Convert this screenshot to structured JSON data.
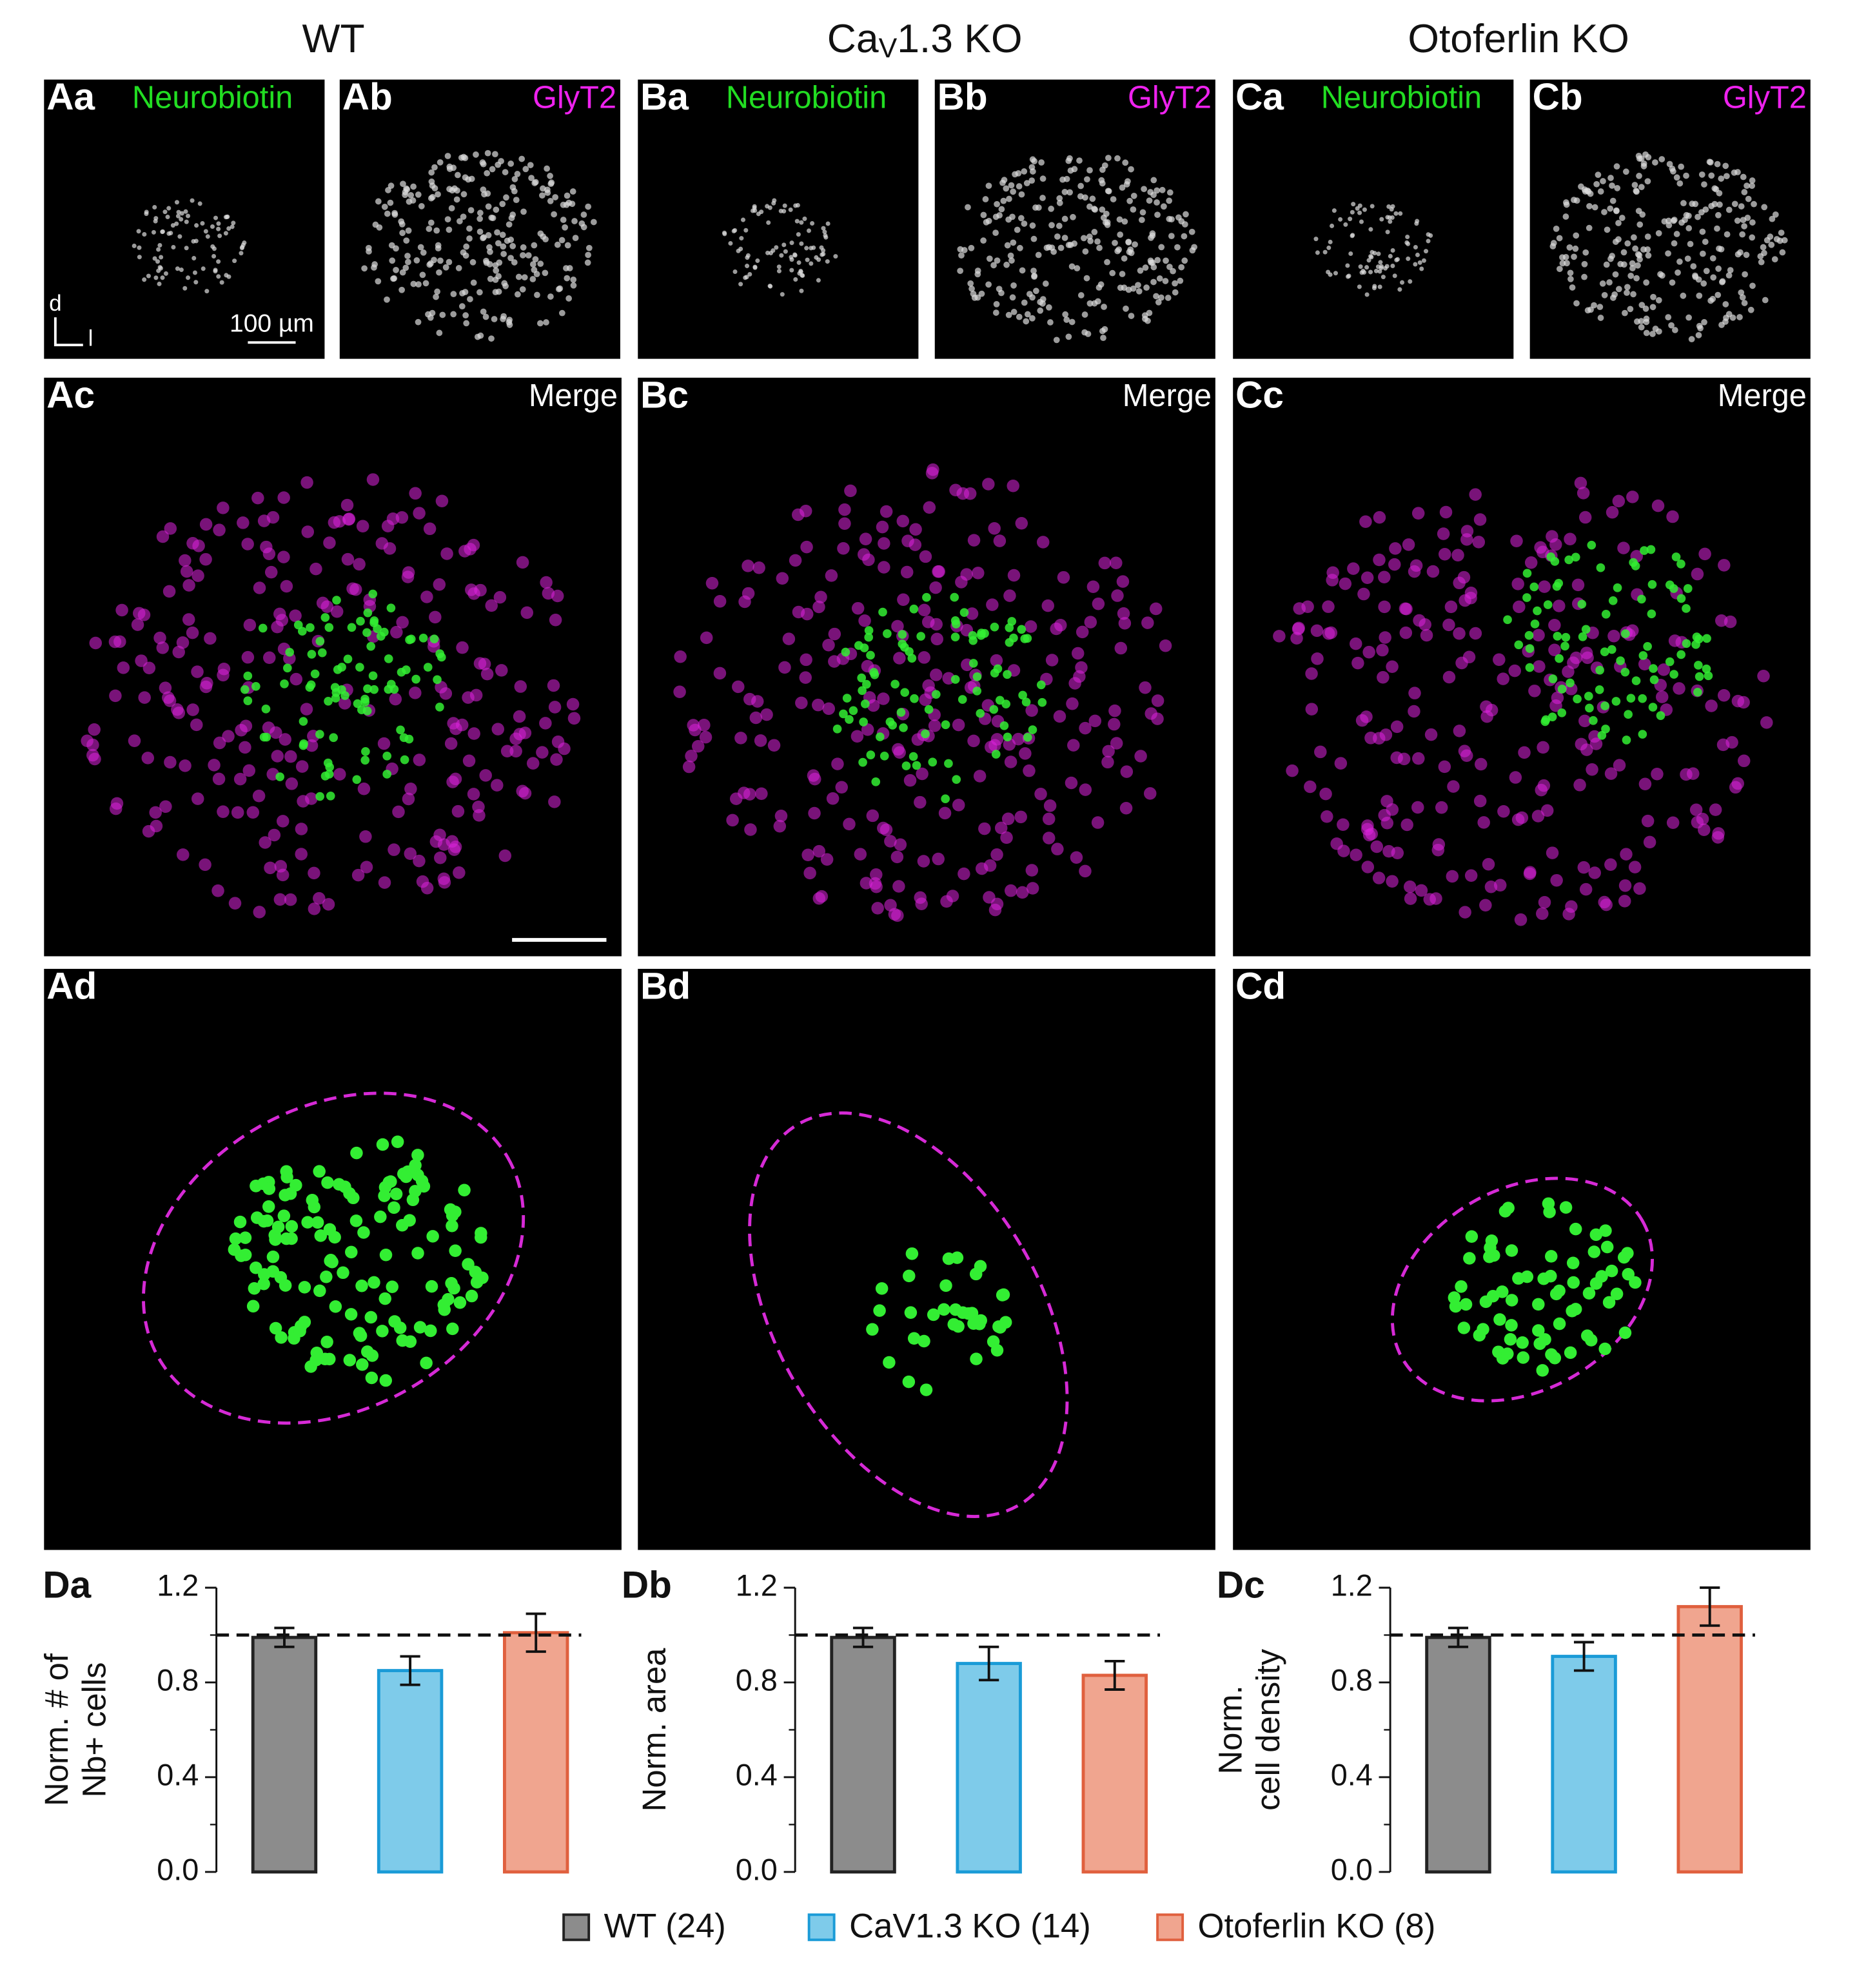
{
  "columns": [
    {
      "title": [
        "WT"
      ]
    },
    {
      "title": [
        "Ca",
        "V",
        "1.3 KO"
      ]
    },
    {
      "title": [
        "Otoferlin KO"
      ]
    }
  ],
  "panels": [
    {
      "label": "Aa",
      "tag": "Neurobiotin",
      "tag_color": "#22dd22"
    },
    {
      "label": "Ab",
      "tag": "GlyT2",
      "tag_color": "#ee22ee"
    },
    {
      "label": "Ba",
      "tag": "Neurobiotin",
      "tag_color": "#22dd22"
    },
    {
      "label": "Bb",
      "tag": "GlyT2",
      "tag_color": "#ee22ee"
    },
    {
      "label": "Ca",
      "tag": "Neurobiotin",
      "tag_color": "#22dd22"
    },
    {
      "label": "Cb",
      "tag": "GlyT2",
      "tag_color": "#ee22ee"
    },
    {
      "label": "Ac",
      "tag": "Merge",
      "tag_color": "#ffffff"
    },
    {
      "label": "Bc",
      "tag": "Merge",
      "tag_color": "#ffffff"
    },
    {
      "label": "Cc",
      "tag": "Merge",
      "tag_color": "#ffffff"
    },
    {
      "label": "Ad"
    },
    {
      "label": "Bd"
    },
    {
      "label": "Cd"
    }
  ],
  "scale_bar": "100 µm",
  "orientation": [
    "d",
    "l"
  ],
  "chart_data": [
    {
      "type": "bar",
      "title": "Da",
      "ylabel": [
        "Norm. # of",
        "Nb+ cells"
      ],
      "ylim": [
        0,
        1.2
      ],
      "yticks": [
        {
          "value": 0,
          "label": "0.0"
        },
        0.4,
        0.8,
        1.2
      ],
      "reference_line": 1,
      "series": [
        {
          "name": "WT (24)",
          "color": "#8c8c8c",
          "edgecolor": "#222222",
          "values": [
            0.99
          ],
          "errors": [
            0.04
          ]
        },
        {
          "name": "CaV1.3 KO (14)",
          "color": "#7ecbea",
          "edgecolor": "#1a9bd7",
          "values": [
            0.85
          ],
          "errors": [
            0.06
          ]
        },
        {
          "name": "Otoferlin KO (8)",
          "color": "#f0a58f",
          "edgecolor": "#e0603e",
          "values": [
            1.01
          ],
          "errors": [
            0.08
          ]
        }
      ]
    },
    {
      "type": "bar",
      "title": "Db",
      "ylabel": [
        "Norm. area"
      ],
      "ylim": [
        0,
        1.2
      ],
      "yticks": [
        {
          "value": 0,
          "label": "0.0"
        },
        0.4,
        0.8,
        1.2
      ],
      "reference_line": 1,
      "series": [
        {
          "name": "WT (24)",
          "color": "#8c8c8c",
          "edgecolor": "#222222",
          "values": [
            0.99
          ],
          "errors": [
            0.04
          ]
        },
        {
          "name": "CaV1.3 KO (14)",
          "color": "#7ecbea",
          "edgecolor": "#1a9bd7",
          "values": [
            0.88
          ],
          "errors": [
            0.07
          ]
        },
        {
          "name": "Otoferlin KO (8)",
          "color": "#f0a58f",
          "edgecolor": "#e0603e",
          "values": [
            0.83
          ],
          "errors": [
            0.06
          ]
        }
      ]
    },
    {
      "type": "bar",
      "title": "Dc",
      "ylabel": [
        "Norm.",
        "cell density"
      ],
      "ylim": [
        0,
        1.2
      ],
      "yticks": [
        {
          "value": 0,
          "label": "0.0"
        },
        0.4,
        0.8,
        1.2
      ],
      "reference_line": 1,
      "series": [
        {
          "name": "WT (24)",
          "color": "#8c8c8c",
          "edgecolor": "#222222",
          "values": [
            0.99
          ],
          "errors": [
            0.04
          ]
        },
        {
          "name": "CaV1.3 KO (14)",
          "color": "#7ecbea",
          "edgecolor": "#1a9bd7",
          "values": [
            0.91
          ],
          "errors": [
            0.06
          ]
        },
        {
          "name": "Otoferlin KO (8)",
          "color": "#f0a58f",
          "edgecolor": "#e0603e",
          "values": [
            1.12
          ],
          "errors": [
            0.08
          ]
        }
      ]
    }
  ]
}
